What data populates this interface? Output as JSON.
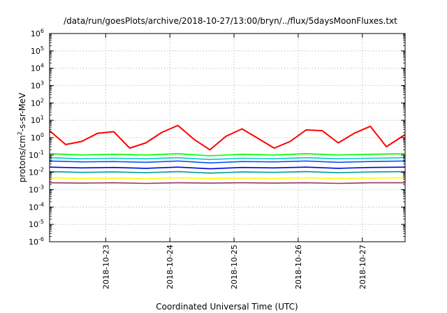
{
  "chart_data": {
    "type": "line",
    "title": "/data/run/goesPlots/archive/2018-10-27/13:00/bryn/../flux/5daysMoonFluxes.txt",
    "xlabel": "Coordinated Universal Time (UTC)",
    "ylabel": "protons/cm²-s-sr-MeV",
    "ylabel_base": "protons/cm",
    "ylabel_sup": "2",
    "ylabel_rest": "-s-sr-MeV",
    "yscale": "log",
    "ylim": [
      1e-06,
      1000000.0
    ],
    "xlim": [
      "2018-10-22T03:00",
      "2018-10-27T16:00"
    ],
    "x_ticks": [
      "2018-10-23",
      "2018-10-24",
      "2018-10-25",
      "2018-10-26",
      "2018-10-27"
    ],
    "y_ticks": [
      {
        "base": "10",
        "exp": "-6"
      },
      {
        "base": "10",
        "exp": "-5"
      },
      {
        "base": "10",
        "exp": "-4"
      },
      {
        "base": "10",
        "exp": "-3"
      },
      {
        "base": "10",
        "exp": "-2"
      },
      {
        "base": "10",
        "exp": "-1"
      },
      {
        "base": "10",
        "exp": "0"
      },
      {
        "base": "10",
        "exp": "1"
      },
      {
        "base": "10",
        "exp": "2"
      },
      {
        "base": "10",
        "exp": "3"
      },
      {
        "base": "10",
        "exp": "4"
      },
      {
        "base": "10",
        "exp": "5"
      },
      {
        "base": "10",
        "exp": "6"
      }
    ],
    "grid": true,
    "legend": "none",
    "series": [
      {
        "color": "#ff0000",
        "x": [
          "2018-10-22T03:00",
          "2018-10-22T09:00",
          "2018-10-22T15:00",
          "2018-10-22T21:00",
          "2018-10-23T03:00",
          "2018-10-23T09:00",
          "2018-10-23T15:00",
          "2018-10-23T21:00",
          "2018-10-24T03:00",
          "2018-10-24T09:00",
          "2018-10-24T15:00",
          "2018-10-24T21:00",
          "2018-10-25T03:00",
          "2018-10-25T09:00",
          "2018-10-25T15:00",
          "2018-10-25T21:00",
          "2018-10-26T03:00",
          "2018-10-26T09:00",
          "2018-10-26T15:00",
          "2018-10-26T21:00",
          "2018-10-27T03:00",
          "2018-10-27T09:00",
          "2018-10-27T16:00"
        ],
        "values": [
          2.5,
          0.4,
          0.6,
          1.8,
          2.2,
          0.25,
          0.5,
          2.0,
          5.0,
          0.8,
          0.2,
          1.2,
          3.2,
          0.9,
          0.25,
          0.6,
          2.8,
          2.5,
          0.5,
          1.8,
          4.5,
          0.3,
          1.5
        ]
      },
      {
        "color": "#00ff00",
        "x": [
          "2018-10-22T03:00",
          "2018-10-22T15:00",
          "2018-10-23T03:00",
          "2018-10-23T15:00",
          "2018-10-24T03:00",
          "2018-10-24T15:00",
          "2018-10-25T03:00",
          "2018-10-25T15:00",
          "2018-10-26T03:00",
          "2018-10-26T15:00",
          "2018-10-27T03:00",
          "2018-10-27T16:00"
        ],
        "values": [
          0.12,
          0.1,
          0.11,
          0.1,
          0.12,
          0.09,
          0.11,
          0.1,
          0.12,
          0.1,
          0.11,
          0.12
        ]
      },
      {
        "color": "#00cccc",
        "x": [
          "2018-10-22T03:00",
          "2018-10-22T15:00",
          "2018-10-23T03:00",
          "2018-10-23T15:00",
          "2018-10-24T03:00",
          "2018-10-24T15:00",
          "2018-10-25T03:00",
          "2018-10-25T15:00",
          "2018-10-26T03:00",
          "2018-10-26T15:00",
          "2018-10-27T03:00",
          "2018-10-27T16:00"
        ],
        "values": [
          0.07,
          0.06,
          0.065,
          0.06,
          0.07,
          0.055,
          0.065,
          0.06,
          0.07,
          0.06,
          0.065,
          0.07
        ]
      },
      {
        "color": "#0055ff",
        "x": [
          "2018-10-22T03:00",
          "2018-10-22T15:00",
          "2018-10-23T03:00",
          "2018-10-23T15:00",
          "2018-10-24T03:00",
          "2018-10-24T15:00",
          "2018-10-25T03:00",
          "2018-10-25T15:00",
          "2018-10-26T03:00",
          "2018-10-26T15:00",
          "2018-10-27T03:00",
          "2018-10-27T16:00"
        ],
        "values": [
          0.045,
          0.04,
          0.042,
          0.038,
          0.045,
          0.035,
          0.042,
          0.04,
          0.045,
          0.038,
          0.042,
          0.045
        ]
      },
      {
        "color": "#0000dd",
        "x": [
          "2018-10-22T03:00",
          "2018-10-22T15:00",
          "2018-10-23T03:00",
          "2018-10-23T15:00",
          "2018-10-24T03:00",
          "2018-10-24T15:00",
          "2018-10-25T03:00",
          "2018-10-25T15:00",
          "2018-10-26T03:00",
          "2018-10-26T15:00",
          "2018-10-27T03:00",
          "2018-10-27T16:00"
        ],
        "values": [
          0.02,
          0.018,
          0.019,
          0.017,
          0.02,
          0.016,
          0.019,
          0.018,
          0.02,
          0.017,
          0.019,
          0.02
        ]
      },
      {
        "color": "#00a0a0",
        "x": [
          "2018-10-22T03:00",
          "2018-10-22T15:00",
          "2018-10-23T03:00",
          "2018-10-23T15:00",
          "2018-10-24T03:00",
          "2018-10-24T15:00",
          "2018-10-25T03:00",
          "2018-10-25T15:00",
          "2018-10-26T03:00",
          "2018-10-26T15:00",
          "2018-10-27T03:00",
          "2018-10-27T16:00"
        ],
        "values": [
          0.011,
          0.01,
          0.0105,
          0.0095,
          0.011,
          0.009,
          0.0105,
          0.01,
          0.011,
          0.0095,
          0.0105,
          0.011
        ]
      },
      {
        "color": "#ffff00",
        "x": [
          "2018-10-22T03:00",
          "2018-10-22T15:00",
          "2018-10-23T03:00",
          "2018-10-23T15:00",
          "2018-10-24T03:00",
          "2018-10-24T15:00",
          "2018-10-25T03:00",
          "2018-10-25T15:00",
          "2018-10-26T03:00",
          "2018-10-26T15:00",
          "2018-10-27T03:00",
          "2018-10-27T16:00"
        ],
        "values": [
          0.0048,
          0.0045,
          0.0047,
          0.0044,
          0.0048,
          0.0045,
          0.0047,
          0.0045,
          0.0048,
          0.0045,
          0.0047,
          0.0048
        ]
      },
      {
        "color": "#993366",
        "x": [
          "2018-10-22T03:00",
          "2018-10-22T15:00",
          "2018-10-23T03:00",
          "2018-10-23T15:00",
          "2018-10-24T03:00",
          "2018-10-24T15:00",
          "2018-10-25T03:00",
          "2018-10-25T15:00",
          "2018-10-26T03:00",
          "2018-10-26T15:00",
          "2018-10-27T03:00",
          "2018-10-27T16:00"
        ],
        "values": [
          0.0025,
          0.0024,
          0.0025,
          0.0023,
          0.0025,
          0.0024,
          0.0025,
          0.0024,
          0.0025,
          0.0023,
          0.0025,
          0.0025
        ]
      }
    ]
  }
}
